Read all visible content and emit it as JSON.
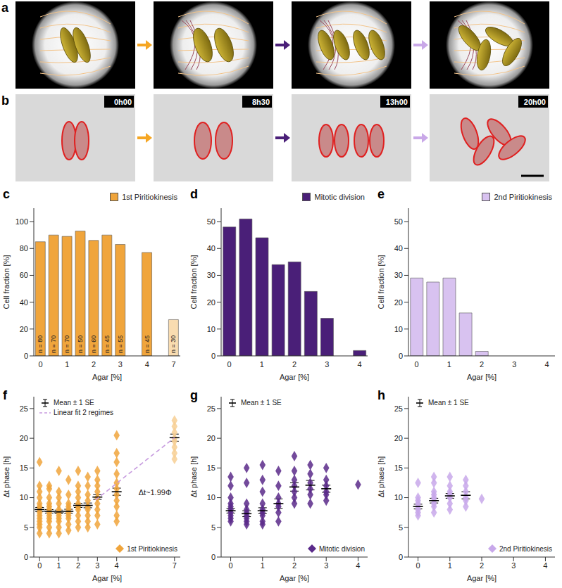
{
  "a": {
    "panel": "a"
  },
  "b": {
    "panel": "b",
    "times": [
      "0h00",
      "8h30",
      "13h00",
      "20h00"
    ]
  },
  "chart_data": [
    {
      "type": "bar",
      "panel": "c",
      "x_label": "Agar [%]",
      "y_label": "Cell fraction [%]",
      "categories": [
        "0",
        null,
        "1",
        null,
        "2",
        null,
        "3",
        null,
        "4",
        null,
        "7"
      ],
      "series": [
        {
          "name": "1st Piritiokinesis",
          "color": "#f0a53c",
          "colors": [
            "#f0a53c",
            "#f0a53c",
            "#f0a53c",
            "#f0a53c",
            "#f0a53c",
            "#f0a53c",
            "#f0a53c",
            "#f0a53c",
            "#f0a53c",
            "#f0a53c",
            "#f9dcb0"
          ],
          "values": [
            85,
            90,
            89,
            93,
            86,
            90,
            83,
            null,
            77,
            null,
            27
          ],
          "n_labels": [
            "n = 80",
            "n = 70",
            "n = 70",
            "n = 50",
            "n = 60",
            "n = 45",
            "n = 55",
            null,
            "n = 45",
            null,
            "n = 30"
          ]
        }
      ],
      "ylim": [
        0,
        110
      ],
      "yticks": [
        0,
        20,
        40,
        60,
        80,
        100
      ],
      "legend": "top right"
    },
    {
      "type": "bar",
      "panel": "d",
      "x_label": "Agar [%]",
      "y_label": "Cell fraction [%]",
      "categories": [
        "0",
        null,
        "1",
        null,
        "2",
        null,
        "3",
        null,
        "4"
      ],
      "series": [
        {
          "name": "Mitotic division",
          "color": "#4a1f78",
          "values": [
            48,
            51,
            44,
            34,
            35,
            24,
            14,
            null,
            2
          ]
        }
      ],
      "ylim": [
        0,
        55
      ],
      "yticks": [
        0,
        10,
        20,
        30,
        40,
        50
      ],
      "legend": "top right"
    },
    {
      "type": "bar",
      "panel": "e",
      "x_label": "Agar [%]",
      "y_label": "Cell fraction [%]",
      "categories": [
        "0",
        null,
        "1",
        null,
        "2",
        null,
        "3",
        null,
        "4"
      ],
      "series": [
        {
          "name": "2nd Piritiokinesis",
          "color": "#d8c2f0",
          "values": [
            29,
            27.5,
            29,
            16,
            1.7,
            0,
            0,
            null,
            0
          ]
        }
      ],
      "ylim": [
        0,
        55
      ],
      "yticks": [
        0,
        10,
        20,
        30,
        40,
        50
      ],
      "legend": "top right"
    },
    {
      "type": "scatter",
      "panel": "f",
      "x_label": "Agar [%]",
      "y_label": "Δt phase [h]",
      "xlim": [
        -0.3,
        7.3
      ],
      "xticks": [
        0,
        1,
        2,
        3,
        4,
        7
      ],
      "ylim": [
        0,
        27
      ],
      "yticks": [
        0,
        5,
        10,
        15,
        20,
        25
      ],
      "mean_label": "Mean ± 1 SE",
      "legend": "upper left",
      "series": [
        {
          "name": "1st Piritiokinesis",
          "color": "#f0a53c",
          "marker": "diamond",
          "groups": [
            {
              "x": 0,
              "values": [
                4.0,
                5.0,
                5.5,
                6.0,
                6.5,
                7.0,
                7.5,
                8.0,
                8.5,
                9.0,
                10.0,
                11.0,
                12.0,
                16.0
              ],
              "mean": 8.0,
              "se": 0.35
            },
            {
              "x": 0.5,
              "values": [
                4.0,
                5.0,
                6.0,
                6.5,
                7.0,
                7.5,
                8.0,
                8.5,
                9.0,
                10.0,
                11.5,
                12.0
              ],
              "mean": 7.7,
              "se": 0.3
            },
            {
              "x": 1,
              "values": [
                4.0,
                5.0,
                6.0,
                6.5,
                7.0,
                7.5,
                8.0,
                9.0,
                10.0,
                11.0,
                14.5
              ],
              "mean": 7.6,
              "se": 0.3
            },
            {
              "x": 1.5,
              "values": [
                4.5,
                5.5,
                6.5,
                7.0,
                7.5,
                8.0,
                8.5,
                9.0,
                10.5,
                13.0
              ],
              "mean": 7.7,
              "se": 0.35
            },
            {
              "x": 2,
              "values": [
                5.0,
                6.0,
                7.0,
                8.0,
                8.5,
                9.0,
                10.0,
                11.0,
                12.0,
                14.5
              ],
              "mean": 8.7,
              "se": 0.35
            },
            {
              "x": 2.5,
              "values": [
                5.0,
                6.0,
                7.0,
                8.0,
                8.5,
                9.5,
                10.5,
                12.0,
                13.5
              ],
              "mean": 8.7,
              "se": 0.4
            },
            {
              "x": 3,
              "values": [
                5.5,
                7.0,
                8.0,
                9.0,
                10.0,
                11.0,
                12.0,
                13.0,
                14.5
              ],
              "mean": 10.1,
              "se": 0.4
            },
            {
              "x": 4,
              "values": [
                6.0,
                7.0,
                8.5,
                9.5,
                10.5,
                11.5,
                12.5,
                14.0,
                16.0,
                17.5,
                20.5
              ],
              "mean": 11.0,
              "se": 0.6
            },
            {
              "x": 7,
              "color": "#f7cf94",
              "values": [
                16.5,
                17.5,
                18.5,
                19.5,
                20.0,
                21.0,
                22.0,
                23.0
              ],
              "mean": 20.1,
              "se": 0.6
            }
          ]
        }
      ],
      "fit": {
        "name": "Linear fit 2 regimes",
        "color": "#c79bdf",
        "line_style": "dashed",
        "x": [
          2.9,
          7.0
        ],
        "y": [
          9.6,
          20.1
        ]
      },
      "annotation": "Δt~1.99Φ"
    },
    {
      "type": "scatter",
      "panel": "g",
      "x_label": "Agar [%]",
      "y_label": "Δt phase [h]",
      "xlim": [
        -0.3,
        4.3
      ],
      "xticks": [
        0,
        1,
        2,
        3,
        4
      ],
      "ylim": [
        0,
        27
      ],
      "yticks": [
        0,
        5,
        10,
        15,
        20,
        25
      ],
      "mean_label": "Mean ± 1 SE",
      "legend": "upper left",
      "series": [
        {
          "name": "Mitotic division",
          "color": "#5a2a8a",
          "marker": "diamond",
          "groups": [
            {
              "x": 0,
              "values": [
                6.0,
                6.5,
                7.0,
                7.5,
                8.0,
                8.5,
                9.0,
                10.0,
                12.0,
                13.5
              ],
              "mean": 7.8,
              "se": 0.4
            },
            {
              "x": 0.5,
              "values": [
                5.5,
                6.0,
                6.5,
                7.0,
                7.5,
                8.0,
                9.0,
                12.5,
                15.0
              ],
              "mean": 7.3,
              "se": 0.5
            },
            {
              "x": 1,
              "values": [
                5.5,
                6.0,
                7.0,
                7.5,
                8.0,
                9.0,
                11.0,
                13.0,
                15.5
              ],
              "mean": 7.8,
              "se": 0.5
            },
            {
              "x": 1.5,
              "values": [
                6.0,
                7.5,
                8.5,
                9.0,
                10.0,
                12.0,
                14.5
              ],
              "mean": 9.0,
              "se": 0.8
            },
            {
              "x": 2,
              "values": [
                9.0,
                10.0,
                11.0,
                12.0,
                13.0,
                14.5,
                17.0
              ],
              "mean": 11.8,
              "se": 0.7
            },
            {
              "x": 2.5,
              "values": [
                9.0,
                10.5,
                11.5,
                12.5,
                14.0,
                15.5
              ],
              "mean": 12.1,
              "se": 0.8
            },
            {
              "x": 3,
              "values": [
                9.5,
                10.5,
                11.0,
                12.0,
                13.0,
                15.0
              ],
              "mean": 11.5,
              "se": 0.6
            },
            {
              "x": 4,
              "values": [
                12.2
              ]
            }
          ]
        }
      ]
    },
    {
      "type": "scatter",
      "panel": "h",
      "x_label": "Agar [%]",
      "y_label": "Δt phase [h]",
      "xlim": [
        -0.3,
        4.3
      ],
      "xticks": [
        0,
        1,
        2,
        3,
        4
      ],
      "ylim": [
        0,
        27
      ],
      "yticks": [
        0,
        5,
        10,
        15,
        20,
        25
      ],
      "mean_label": "Mean ± 1 SE",
      "legend": "upper left",
      "series": [
        {
          "name": "2nd Piritiokinesis",
          "color": "#c8a8ea",
          "marker": "diamond",
          "groups": [
            {
              "x": 0,
              "values": [
                7.0,
                7.5,
                8.0,
                8.5,
                9.0,
                9.5,
                10.0,
                12.5
              ],
              "mean": 8.5,
              "se": 0.4
            },
            {
              "x": 0.5,
              "values": [
                7.5,
                8.5,
                9.0,
                9.5,
                10.0,
                10.5,
                11.0,
                12.5,
                13.5
              ],
              "mean": 9.5,
              "se": 0.4
            },
            {
              "x": 1,
              "values": [
                8.0,
                9.0,
                10.0,
                10.5,
                11.0,
                12.0,
                13.5
              ],
              "mean": 10.3,
              "se": 0.4
            },
            {
              "x": 1.5,
              "values": [
                8.5,
                9.5,
                10.0,
                11.0,
                12.0,
                13.0
              ],
              "mean": 10.4,
              "se": 0.6
            },
            {
              "x": 2,
              "values": [
                9.8
              ]
            }
          ]
        }
      ]
    }
  ]
}
